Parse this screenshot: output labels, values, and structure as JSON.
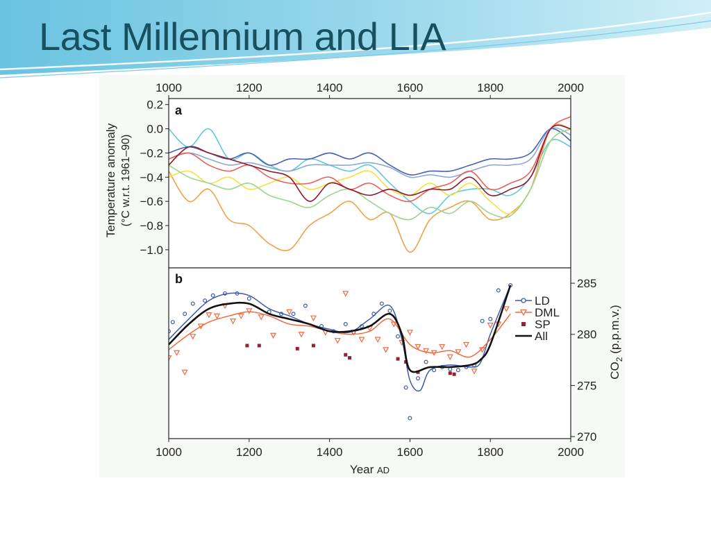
{
  "slide": {
    "title": "Last Millennium and LIA"
  },
  "chart_data": [
    {
      "panel": "a",
      "type": "line",
      "title": "",
      "panel_label": "a",
      "xlabel": "",
      "ylabel": "Temperature anomaly",
      "ylabel_sub": "(°C w.r.t. 1961–90)",
      "xlim": [
        1000,
        2000
      ],
      "ylim": [
        -1.15,
        0.25
      ],
      "x_ticks": [
        1000,
        1200,
        1400,
        1600,
        1800,
        2000
      ],
      "y_ticks": [
        0.2,
        0.0,
        -0.2,
        -0.4,
        -0.6,
        -0.8,
        -1.0
      ],
      "y_tick_labels": [
        "0.2",
        "0.0",
        "−0.2",
        "−0.4",
        "−0.6",
        "−0.8",
        "−1.0"
      ],
      "x_axis_position": "top",
      "grid": false,
      "series": [
        {
          "color": "#5fc8e0",
          "x": [
            1000,
            1050,
            1100,
            1150,
            1200,
            1250,
            1300,
            1350,
            1400,
            1450,
            1500,
            1550,
            1600,
            1650,
            1700,
            1750,
            1800,
            1850,
            1900,
            1950,
            2000
          ],
          "y": [
            0.0,
            -0.15,
            0.0,
            -0.25,
            -0.2,
            -0.3,
            -0.35,
            -0.25,
            -0.3,
            -0.35,
            -0.3,
            -0.45,
            -0.6,
            -0.7,
            -0.55,
            -0.5,
            -0.5,
            -0.55,
            -0.4,
            -0.1,
            -0.15
          ]
        },
        {
          "color": "#4a5fb0",
          "x": [
            1000,
            1050,
            1100,
            1150,
            1200,
            1250,
            1300,
            1350,
            1400,
            1450,
            1500,
            1550,
            1600,
            1650,
            1700,
            1750,
            1800,
            1850,
            1900,
            1950,
            2000
          ],
          "y": [
            -0.2,
            -0.15,
            -0.2,
            -0.25,
            -0.2,
            -0.3,
            -0.25,
            -0.25,
            -0.2,
            -0.25,
            -0.2,
            -0.3,
            -0.38,
            -0.35,
            -0.35,
            -0.3,
            -0.25,
            -0.25,
            -0.2,
            0.0,
            -0.1
          ]
        },
        {
          "color": "#8aa8d8",
          "x": [
            1000,
            1050,
            1100,
            1150,
            1200,
            1250,
            1300,
            1350,
            1400,
            1450,
            1500,
            1550,
            1600,
            1650,
            1700,
            1750,
            1800,
            1850,
            1900,
            1950,
            2000
          ],
          "y": [
            -0.25,
            -0.2,
            -0.25,
            -0.3,
            -0.28,
            -0.32,
            -0.35,
            -0.3,
            -0.3,
            -0.3,
            -0.28,
            -0.32,
            -0.4,
            -0.38,
            -0.4,
            -0.35,
            -0.3,
            -0.3,
            -0.25,
            0.0,
            -0.05
          ]
        },
        {
          "color": "#f2a048",
          "x": [
            1000,
            1050,
            1100,
            1150,
            1200,
            1250,
            1300,
            1350,
            1400,
            1450,
            1500,
            1550,
            1600,
            1650,
            1700,
            1750,
            1800,
            1850,
            1900,
            1950,
            2000
          ],
          "y": [
            -0.35,
            -0.6,
            -0.5,
            -0.75,
            -0.8,
            -0.95,
            -1.0,
            -0.8,
            -0.7,
            -0.6,
            -0.75,
            -0.7,
            -1.02,
            -0.75,
            -0.65,
            -0.6,
            -0.75,
            -0.7,
            -0.5,
            0.0,
            0.0
          ]
        },
        {
          "color": "#f5e040",
          "x": [
            1000,
            1050,
            1100,
            1150,
            1200,
            1250,
            1300,
            1350,
            1400,
            1450,
            1500,
            1550,
            1600,
            1650,
            1700,
            1750,
            1800,
            1850,
            1900,
            1950,
            2000
          ],
          "y": [
            -0.4,
            -0.35,
            -0.45,
            -0.4,
            -0.5,
            -0.45,
            -0.4,
            -0.5,
            -0.45,
            -0.4,
            -0.35,
            -0.5,
            -0.55,
            -0.45,
            -0.55,
            -0.45,
            -0.6,
            -0.7,
            -0.5,
            -0.1,
            0.0
          ]
        },
        {
          "color": "#9cd48c",
          "x": [
            1000,
            1050,
            1100,
            1150,
            1200,
            1250,
            1300,
            1350,
            1400,
            1450,
            1500,
            1550,
            1600,
            1650,
            1700,
            1750,
            1800,
            1850,
            1900,
            1950,
            2000
          ],
          "y": [
            -0.3,
            -0.4,
            -0.45,
            -0.5,
            -0.45,
            -0.55,
            -0.6,
            -0.65,
            -0.55,
            -0.5,
            -0.6,
            -0.7,
            -0.75,
            -0.65,
            -0.7,
            -0.6,
            -0.7,
            -0.72,
            -0.5,
            -0.1,
            0.0
          ]
        },
        {
          "color": "#e8605a",
          "x": [
            1000,
            1050,
            1100,
            1150,
            1200,
            1250,
            1300,
            1350,
            1400,
            1450,
            1500,
            1550,
            1600,
            1650,
            1700,
            1750,
            1800,
            1850,
            1900,
            1950,
            2000
          ],
          "y": [
            -0.25,
            -0.2,
            -0.3,
            -0.35,
            -0.3,
            -0.4,
            -0.45,
            -0.45,
            -0.4,
            -0.5,
            -0.45,
            -0.55,
            -0.6,
            -0.5,
            -0.45,
            -0.35,
            -0.5,
            -0.45,
            -0.35,
            0.0,
            0.1
          ]
        },
        {
          "color": "#8b1a2a",
          "x": [
            1000,
            1050,
            1100,
            1150,
            1200,
            1250,
            1300,
            1350,
            1400,
            1450,
            1500,
            1550,
            1600,
            1650,
            1700,
            1750,
            1800,
            1850,
            1900,
            1950,
            2000
          ],
          "y": [
            -0.3,
            -0.15,
            -0.2,
            -0.25,
            -0.3,
            -0.35,
            -0.4,
            -0.6,
            -0.45,
            -0.5,
            -0.55,
            -0.5,
            -0.55,
            -0.5,
            -0.5,
            -0.4,
            -0.55,
            -0.5,
            -0.4,
            0.0,
            0.0
          ]
        }
      ]
    },
    {
      "panel": "b",
      "type": "scatter",
      "title": "",
      "panel_label": "b",
      "xlabel": "Year",
      "xlabel_small": "AD",
      "ylabel": "CO",
      "ylabel_sub": "2",
      "ylabel_unit": " (p.p.m.v.)",
      "y_axis_position": "right",
      "xlim": [
        1000,
        2000
      ],
      "ylim": [
        269.8,
        286.5
      ],
      "x_ticks": [
        1000,
        1200,
        1400,
        1600,
        1800,
        2000
      ],
      "y_ticks": [
        270,
        275,
        280,
        285
      ],
      "grid": false,
      "legend_placement": "top-right",
      "series": [
        {
          "name": "LD",
          "color": "#3d5aa8",
          "marker": "circle",
          "x": [
            1000,
            1010,
            1040,
            1060,
            1090,
            1110,
            1140,
            1170,
            1200,
            1250,
            1280,
            1310,
            1340,
            1380,
            1410,
            1440,
            1460,
            1480,
            1510,
            1530,
            1550,
            1570,
            1590,
            1600,
            1620,
            1640,
            1660,
            1680,
            1700,
            1720,
            1740,
            1760,
            1780,
            1800,
            1820,
            1850
          ],
          "y": [
            280.3,
            281.2,
            282.0,
            283.0,
            283.3,
            283.8,
            284.0,
            284.0,
            283.5,
            282.2,
            282.0,
            282.0,
            282.8,
            280.8,
            280.3,
            281.0,
            280.2,
            280.8,
            282.0,
            283.0,
            282.3,
            279.8,
            274.8,
            271.8,
            275.7,
            277.3,
            276.5,
            276.8,
            276.6,
            276.5,
            276.8,
            277.0,
            281.3,
            281.5,
            284.3,
            284.8
          ]
        },
        {
          "name": "DML",
          "color": "#f06a40",
          "marker": "triangle-down",
          "x": [
            1000,
            1020,
            1040,
            1060,
            1080,
            1100,
            1120,
            1140,
            1160,
            1180,
            1200,
            1230,
            1260,
            1300,
            1330,
            1360,
            1390,
            1420,
            1440,
            1460,
            1480,
            1500,
            1520,
            1540,
            1560,
            1580,
            1600,
            1620,
            1640,
            1660,
            1680,
            1700,
            1720,
            1740,
            1760,
            1780,
            1800,
            1820,
            1840
          ],
          "y": [
            277.7,
            278.2,
            276.3,
            279.8,
            280.8,
            281.9,
            281.8,
            282.8,
            281.3,
            281.8,
            282.3,
            281.7,
            279.9,
            282.2,
            280.0,
            281.6,
            280.2,
            279.4,
            284.0,
            280.2,
            279.5,
            280.6,
            279.5,
            278.5,
            281.0,
            279.2,
            280.2,
            278.8,
            278.4,
            278.2,
            278.8,
            277.8,
            278.3,
            279.0,
            276.4,
            278.5,
            280.9,
            281.0,
            282.5
          ]
        },
        {
          "name": "SP",
          "color": "#9a2030",
          "marker": "square",
          "x": [
            1195,
            1225,
            1320,
            1360,
            1440,
            1450,
            1570,
            1590,
            1620,
            1700,
            1710
          ],
          "y": [
            278.9,
            278.9,
            278.6,
            278.9,
            278.0,
            277.7,
            277.6,
            277.3,
            276.3,
            276.2,
            276.1
          ]
        },
        {
          "name": "All",
          "color": "#111111",
          "marker": "line",
          "x": [],
          "y": []
        }
      ],
      "smooth_lines": [
        {
          "name": "LD",
          "color": "#3d5aa8",
          "x": [
            1000,
            1050,
            1100,
            1150,
            1200,
            1250,
            1300,
            1350,
            1400,
            1450,
            1500,
            1550,
            1580,
            1600,
            1625,
            1650,
            1700,
            1750,
            1775,
            1800,
            1850
          ],
          "y": [
            279.5,
            281.5,
            283.3,
            284.0,
            283.8,
            282.5,
            281.8,
            281.0,
            280.5,
            280.2,
            281.5,
            282.8,
            279.5,
            275.5,
            274.5,
            276.5,
            277.0,
            276.8,
            277.2,
            280.0,
            284.8
          ]
        },
        {
          "name": "DML",
          "color": "#f06a40",
          "x": [
            1000,
            1050,
            1100,
            1150,
            1200,
            1250,
            1300,
            1350,
            1400,
            1450,
            1500,
            1550,
            1600,
            1650,
            1700,
            1750,
            1800,
            1850
          ],
          "y": [
            278.5,
            280.0,
            281.2,
            281.8,
            282.2,
            281.8,
            281.0,
            280.8,
            280.3,
            280.0,
            280.3,
            281.5,
            279.0,
            278.2,
            278.4,
            277.8,
            279.5,
            282.0
          ]
        },
        {
          "name": "All",
          "color": "#111111",
          "x": [
            1000,
            1050,
            1100,
            1150,
            1200,
            1250,
            1300,
            1350,
            1400,
            1450,
            1500,
            1550,
            1580,
            1600,
            1650,
            1700,
            1750,
            1775,
            1800,
            1850
          ],
          "y": [
            279.0,
            281.0,
            282.5,
            283.0,
            283.0,
            282.0,
            281.5,
            281.0,
            280.3,
            280.3,
            280.8,
            282.0,
            280.0,
            276.5,
            276.8,
            276.8,
            277.0,
            277.5,
            279.0,
            284.8
          ]
        }
      ]
    }
  ]
}
